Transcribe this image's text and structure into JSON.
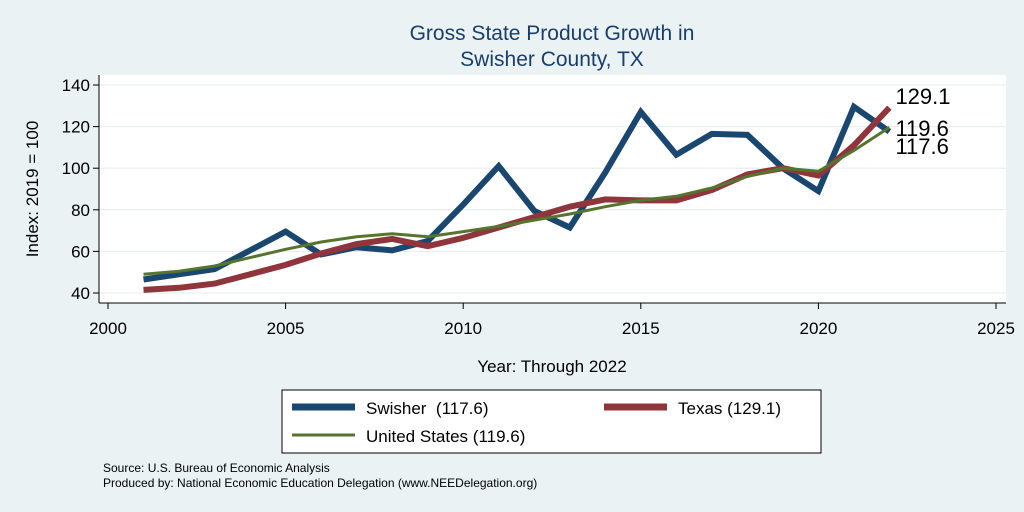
{
  "chart_data": {
    "type": "line",
    "title": [
      "Gross State Product Growth in",
      "Swisher County, TX"
    ],
    "xlabel": "Year: Through 2022",
    "ylabel": "Index: 2019 = 100",
    "xlim": [
      2000,
      2025
    ],
    "ylim": [
      40,
      140
    ],
    "xticks": [
      2000,
      2005,
      2010,
      2015,
      2020,
      2025
    ],
    "yticks": [
      40,
      60,
      80,
      100,
      120,
      140
    ],
    "grid": true,
    "series": [
      {
        "name": "Swisher",
        "legend_label": "Swisher  (117.6)",
        "color": "#1a476f",
        "x": [
          2001,
          2002,
          2003,
          2004,
          2005,
          2006,
          2007,
          2008,
          2009,
          2010,
          2011,
          2012,
          2013,
          2014,
          2015,
          2016,
          2017,
          2018,
          2019,
          2020,
          2021,
          2022
        ],
        "values": [
          46.5,
          49,
          51.5,
          60.5,
          69.5,
          58.5,
          62,
          60.5,
          65,
          82.5,
          101,
          79.5,
          71.5,
          98,
          127,
          106.5,
          116.5,
          116,
          100,
          89,
          129.5,
          117.6
        ],
        "end_label": "117.6"
      },
      {
        "name": "Texas",
        "legend_label": "Texas (129.1)",
        "color": "#90353b",
        "x": [
          2001,
          2002,
          2003,
          2004,
          2005,
          2006,
          2007,
          2008,
          2009,
          2010,
          2011,
          2012,
          2013,
          2014,
          2015,
          2016,
          2017,
          2018,
          2019,
          2020,
          2021,
          2022
        ],
        "values": [
          41.5,
          42.5,
          44.5,
          49,
          53.5,
          59,
          63.5,
          66,
          62.5,
          66.5,
          71.5,
          76.5,
          81.5,
          85,
          84.5,
          84.5,
          89.5,
          97,
          100,
          96.5,
          111,
          129.1
        ],
        "end_label": "129.1"
      },
      {
        "name": "United States",
        "legend_label": "United States (119.6)",
        "color": "#55752f",
        "x": [
          2001,
          2002,
          2003,
          2004,
          2005,
          2006,
          2007,
          2008,
          2009,
          2010,
          2011,
          2012,
          2013,
          2014,
          2015,
          2016,
          2017,
          2018,
          2019,
          2020,
          2021,
          2022
        ],
        "values": [
          49,
          50.5,
          53,
          57,
          61,
          64.5,
          67,
          68.5,
          67,
          69.5,
          72,
          75,
          78,
          81.5,
          84.5,
          86.5,
          90.5,
          96,
          100,
          98.5,
          108.5,
          119.6
        ],
        "end_label": "119.6"
      }
    ]
  },
  "source_lines": [
    "Source: U.S. Bureau of Economic Analysis",
    "Produced by: National Economic Education Delegation (www.NEEDelegation.org)"
  ]
}
